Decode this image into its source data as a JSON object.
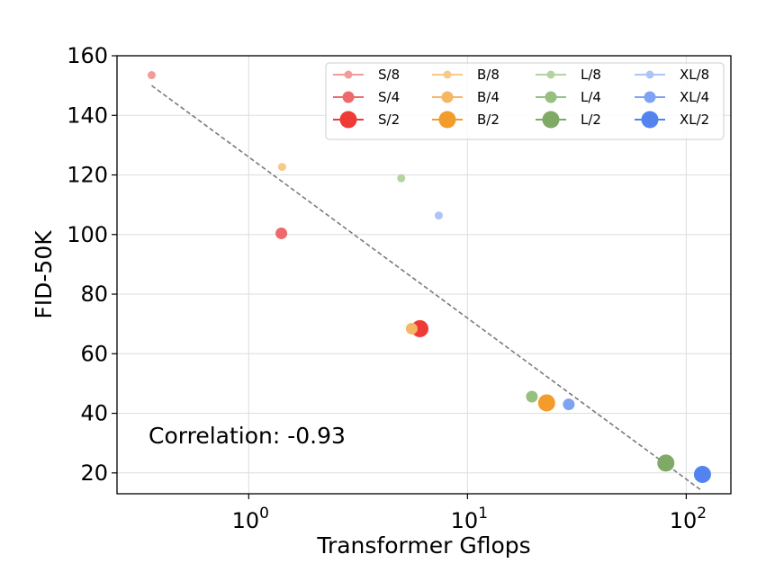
{
  "chart_data": {
    "type": "scatter",
    "xlabel": "Transformer Gflops",
    "ylabel": "FID-50K",
    "xscale": "log",
    "xlim": [
      0.25,
      160
    ],
    "ylim": [
      13,
      160
    ],
    "x_tick_labels": [
      {
        "value": 1,
        "base": "10",
        "exp": "0"
      },
      {
        "value": 10,
        "base": "10",
        "exp": "1"
      },
      {
        "value": 100,
        "base": "10",
        "exp": "2"
      }
    ],
    "y_ticks": [
      20,
      40,
      60,
      80,
      100,
      120,
      140,
      160
    ],
    "grid": true,
    "legend_position": "top-right",
    "annotation": "Correlation: -0.93",
    "trendline": {
      "x": [
        0.36,
        118
      ],
      "y": [
        150,
        14
      ],
      "style": "dashed"
    },
    "series": [
      {
        "name": "S/8",
        "color": "#f29b9b",
        "size": "small",
        "x": 0.36,
        "y": 153.5
      },
      {
        "name": "S/4",
        "color": "#ee6a6a",
        "size": "medium",
        "x": 1.41,
        "y": 100.4
      },
      {
        "name": "S/2",
        "color": "#ee3b35",
        "size": "large",
        "x": 6.06,
        "y": 68.4
      },
      {
        "name": "B/8",
        "color": "#f7c98a",
        "size": "small",
        "x": 1.42,
        "y": 122.7
      },
      {
        "name": "B/4",
        "color": "#f5b766",
        "size": "medium",
        "x": 5.56,
        "y": 68.4
      },
      {
        "name": "B/2",
        "color": "#f39c2c",
        "size": "large",
        "x": 23.01,
        "y": 43.5
      },
      {
        "name": "L/8",
        "color": "#b4d2a2",
        "size": "small",
        "x": 4.98,
        "y": 118.9
      },
      {
        "name": "L/4",
        "color": "#97bf80",
        "size": "medium",
        "x": 19.7,
        "y": 45.6
      },
      {
        "name": "L/2",
        "color": "#80a965",
        "size": "large",
        "x": 80.71,
        "y": 23.3
      },
      {
        "name": "XL/8",
        "color": "#acc5f7",
        "size": "small",
        "x": 7.39,
        "y": 106.4
      },
      {
        "name": "XL/4",
        "color": "#7fa3f2",
        "size": "medium",
        "x": 29.05,
        "y": 43.0
      },
      {
        "name": "XL/2",
        "color": "#5283ef",
        "size": "large",
        "x": 118.64,
        "y": 19.5
      }
    ]
  }
}
